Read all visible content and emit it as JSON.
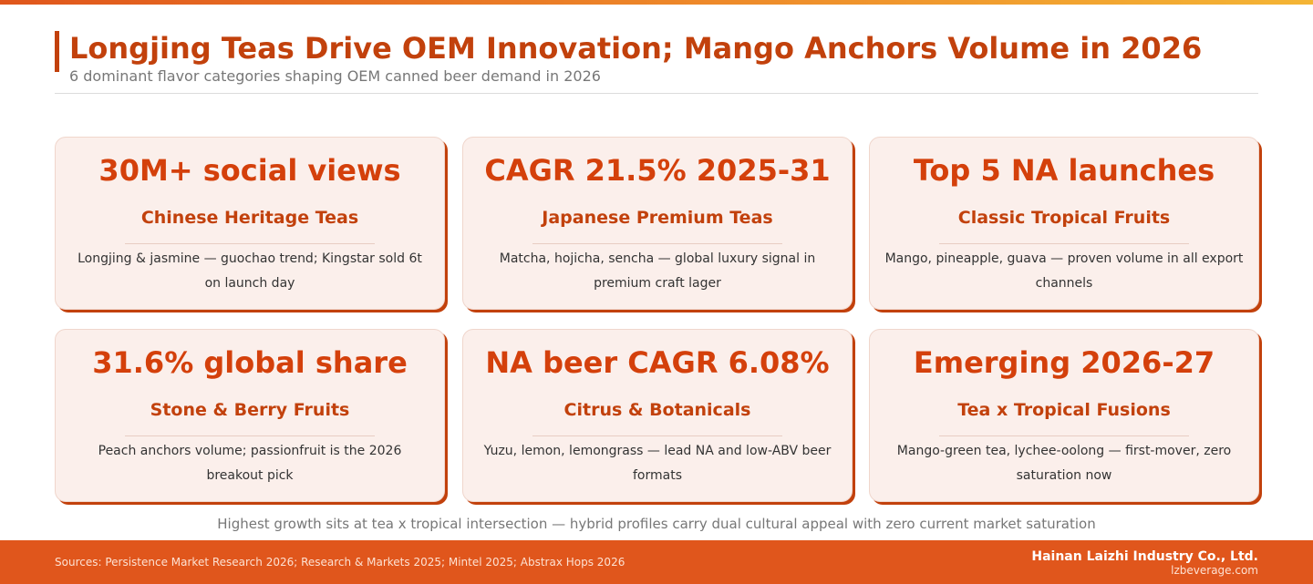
{
  "header": {
    "title": "Longjing Teas Drive OEM Innovation; Mango Anchors Volume in 2026",
    "subtitle": "6 dominant flavor categories shaping OEM canned beer demand in 2026"
  },
  "cards": [
    {
      "stat": "30M+ social views",
      "category": "Chinese Heritage Teas",
      "description": "Longjing & jasmine — guochao trend; Kingstar sold 6t on launch day"
    },
    {
      "stat": "CAGR 21.5% 2025-31",
      "category": "Japanese Premium Teas",
      "description": "Matcha, hojicha, sencha — global luxury signal in premium craft lager"
    },
    {
      "stat": "Top 5 NA launches",
      "category": "Classic Tropical Fruits",
      "description": "Mango, pineapple, guava — proven volume in all export channels"
    },
    {
      "stat": "31.6% global share",
      "category": "Stone & Berry Fruits",
      "description": "Peach anchors volume; passionfruit is the 2026 breakout pick"
    },
    {
      "stat": "NA beer CAGR 6.08%",
      "category": "Citrus & Botanicals",
      "description": "Yuzu, lemon, lemongrass — lead NA and low-ABV beer formats"
    },
    {
      "stat": "Emerging 2026-27",
      "category": "Tea x Tropical Fusions",
      "description": "Mango-green tea, lychee-oolong — first-mover, zero saturation now"
    }
  ],
  "footnote": "Highest growth sits at tea x tropical intersection — hybrid profiles carry dual cultural appeal with zero current market saturation",
  "footer": {
    "sources": "Sources: Persistence Market Research 2026; Research & Markets 2025; Mintel 2025; Abstrax Hops 2026",
    "company": "Hainan Laizhi Industry Co., Ltd.",
    "website": "lzbeverage.com"
  },
  "colors": {
    "accent": "#c2410c",
    "footer_bg": "#e0561c",
    "card_bg": "#fbefeb"
  }
}
